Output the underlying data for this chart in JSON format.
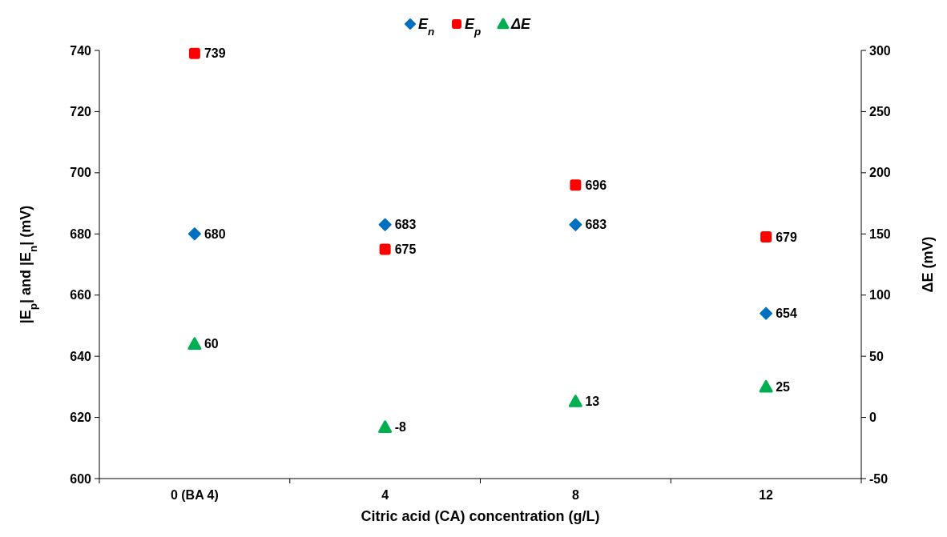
{
  "chart_data": {
    "type": "scatter",
    "xlabel": "Citric acid (CA) concentration (g/L)",
    "ylabel": "|E$_{p}$| and |E$_{n}$| (mV)",
    "y2label": "ΔE (mV)",
    "categories": [
      "0 (BA 4)",
      "4",
      "8",
      "12"
    ],
    "series": [
      {
        "name": "E$_{n}$",
        "color": "#0070c0",
        "marker": "diamond",
        "values": [
          680,
          683,
          683,
          654
        ]
      },
      {
        "name": "E$_{p}$",
        "color": "#ff0000",
        "marker": "square",
        "values": [
          739,
          675,
          696,
          679
        ]
      },
      {
        "name": "ΔE",
        "color": "#00b050",
        "marker": "triangle",
        "axis": "y2",
        "values": [
          60,
          -8,
          13,
          25
        ]
      }
    ],
    "ylim": [
      600,
      740
    ],
    "yticks": [
      600,
      620,
      640,
      660,
      680,
      700,
      720,
      740
    ],
    "y2lim": [
      -50,
      300
    ],
    "y2ticks": [
      -50,
      0,
      50,
      100,
      150,
      200,
      250,
      300
    ],
    "data_labels": true,
    "legend": "top",
    "grid": false
  }
}
